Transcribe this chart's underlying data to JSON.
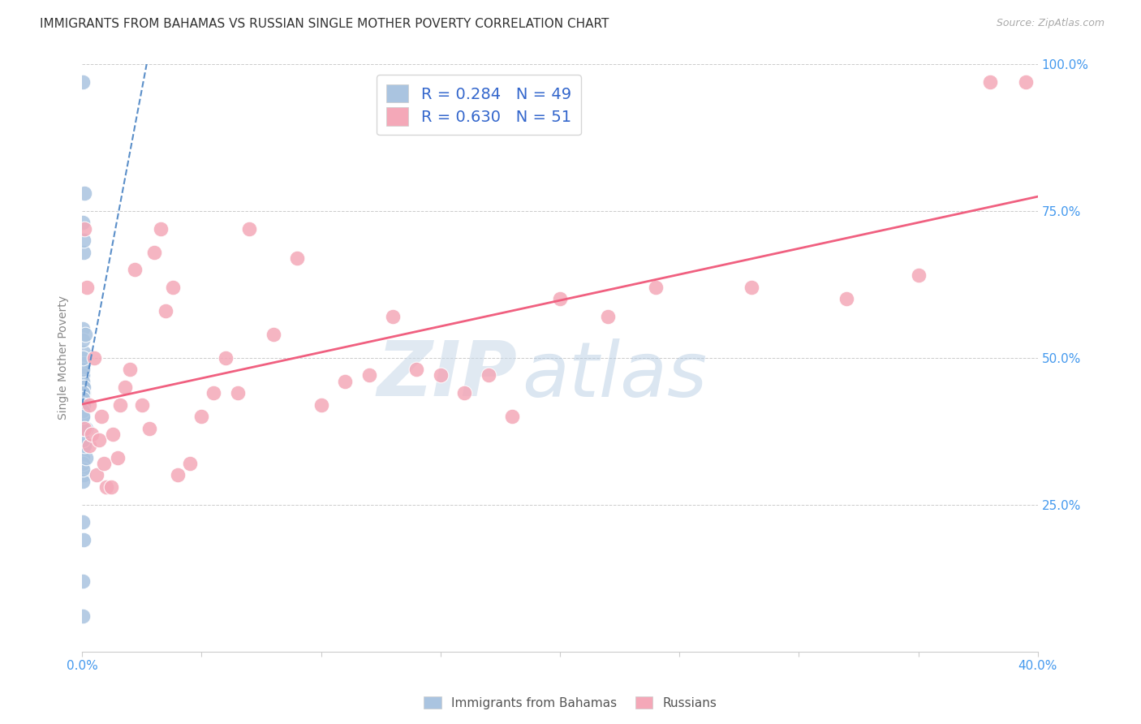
{
  "title": "IMMIGRANTS FROM BAHAMAS VS RUSSIAN SINGLE MOTHER POVERTY CORRELATION CHART",
  "source": "Source: ZipAtlas.com",
  "ylabel": "Single Mother Poverty",
  "xlim": [
    0.0,
    0.4
  ],
  "ylim": [
    0.0,
    1.0
  ],
  "xtick_positions": [
    0.0,
    0.05,
    0.1,
    0.15,
    0.2,
    0.25,
    0.3,
    0.35,
    0.4
  ],
  "xticklabels": [
    "0.0%",
    "",
    "",
    "",
    "",
    "",
    "",
    "",
    "40.0%"
  ],
  "ytick_positions": [
    0.0,
    0.25,
    0.5,
    0.75,
    1.0
  ],
  "yticklabels_right": [
    "",
    "25.0%",
    "50.0%",
    "75.0%",
    "100.0%"
  ],
  "r_bahamas": 0.284,
  "n_bahamas": 49,
  "r_russians": 0.63,
  "n_russians": 51,
  "color_bahamas": "#aac4e0",
  "color_russians": "#f4a8b8",
  "color_bahamas_line": "#5b8fc9",
  "color_russians_line": "#f06080",
  "watermark_zip": "ZIP",
  "watermark_atlas": "atlas",
  "legend_label_bahamas": "Immigrants from Bahamas",
  "legend_label_russians": "Russians",
  "bahamas_x": [
    0.0004,
    0.0006,
    0.0003,
    0.0004,
    0.0003,
    0.0005,
    0.0003,
    0.0003,
    0.0003,
    0.0005,
    0.0003,
    0.0003,
    0.0003,
    0.0005,
    0.0006,
    0.0003,
    0.0003,
    0.0005,
    0.0008,
    0.0007,
    0.0003,
    0.0003,
    0.0003,
    0.0003,
    0.0003,
    0.0003,
    0.0003,
    0.0003,
    0.0003,
    0.0004,
    0.0003,
    0.0013,
    0.0007,
    0.0003,
    0.0003,
    0.0016,
    0.0007,
    0.0015,
    0.0009,
    0.0003,
    0.0003,
    0.0003,
    0.0003,
    0.0003,
    0.0003,
    0.0003,
    0.0005,
    0.0003,
    0.0003
  ],
  "bahamas_y": [
    0.33,
    0.3,
    0.42,
    0.43,
    0.4,
    0.35,
    0.36,
    0.38,
    0.37,
    0.68,
    0.73,
    0.55,
    0.48,
    0.51,
    0.49,
    0.97,
    0.47,
    0.44,
    0.78,
    0.7,
    0.29,
    0.32,
    0.31,
    0.46,
    0.45,
    0.44,
    0.42,
    0.48,
    0.4,
    0.5,
    0.53,
    0.54,
    0.45,
    0.22,
    0.12,
    0.38,
    0.19,
    0.33,
    0.35,
    0.36,
    0.38,
    0.43,
    0.44,
    0.06,
    0.44,
    0.43,
    0.42,
    0.41,
    0.4
  ],
  "russians_x": [
    0.001,
    0.001,
    0.002,
    0.003,
    0.003,
    0.004,
    0.005,
    0.006,
    0.007,
    0.008,
    0.009,
    0.01,
    0.012,
    0.013,
    0.015,
    0.016,
    0.018,
    0.02,
    0.022,
    0.025,
    0.028,
    0.03,
    0.033,
    0.035,
    0.038,
    0.04,
    0.045,
    0.05,
    0.055,
    0.06,
    0.065,
    0.07,
    0.08,
    0.09,
    0.1,
    0.11,
    0.12,
    0.13,
    0.14,
    0.15,
    0.16,
    0.17,
    0.18,
    0.2,
    0.22,
    0.24,
    0.28,
    0.32,
    0.35,
    0.38,
    0.395
  ],
  "russians_y": [
    0.38,
    0.72,
    0.62,
    0.42,
    0.35,
    0.37,
    0.5,
    0.3,
    0.36,
    0.4,
    0.32,
    0.28,
    0.28,
    0.37,
    0.33,
    0.42,
    0.45,
    0.48,
    0.65,
    0.42,
    0.38,
    0.68,
    0.72,
    0.58,
    0.62,
    0.3,
    0.32,
    0.4,
    0.44,
    0.5,
    0.44,
    0.72,
    0.54,
    0.67,
    0.42,
    0.46,
    0.47,
    0.57,
    0.48,
    0.47,
    0.44,
    0.47,
    0.4,
    0.6,
    0.57,
    0.62,
    0.62,
    0.6,
    0.64,
    0.97,
    0.97
  ],
  "background_color": "#ffffff",
  "grid_color": "#cccccc",
  "title_color": "#333333",
  "axis_label_color": "#888888",
  "tick_color": "#4499ee",
  "watermark_color_zip": "#c8d8e8",
  "watermark_color_atlas": "#b0c8e0",
  "title_fontsize": 11,
  "source_fontsize": 9,
  "tick_fontsize": 11,
  "ylabel_fontsize": 10
}
